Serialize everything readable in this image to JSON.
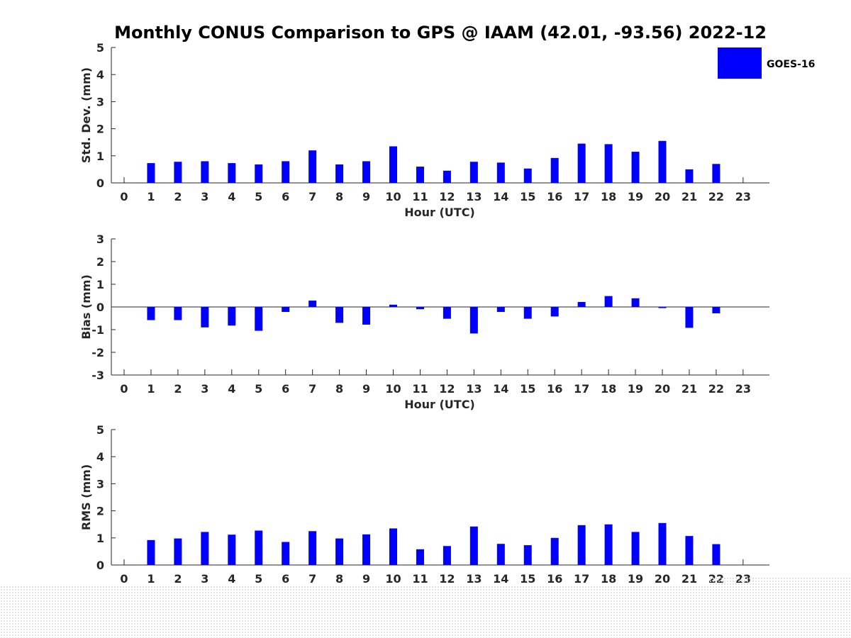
{
  "title": "Monthly CONUS Comparison to GPS @ IAAM (42.01, -93.56) 2022-12",
  "legend": {
    "label": "GOES-16",
    "color": "#0000ff"
  },
  "bar_color": "#0000ff",
  "chart_data": [
    {
      "type": "bar",
      "id": "std",
      "ylabel": "Std. Dev. (mm)",
      "xlabel": "Hour (UTC)",
      "ylim": [
        0,
        5
      ],
      "yticks": [
        0,
        1,
        2,
        3,
        4,
        5
      ],
      "categories": [
        "0",
        "1",
        "2",
        "3",
        "4",
        "5",
        "6",
        "7",
        "8",
        "9",
        "10",
        "11",
        "12",
        "13",
        "14",
        "15",
        "16",
        "17",
        "18",
        "19",
        "20",
        "21",
        "22",
        "23"
      ],
      "series": [
        {
          "name": "GOES-16",
          "values": [
            null,
            0.73,
            0.78,
            0.8,
            0.73,
            0.68,
            0.8,
            1.2,
            0.68,
            0.8,
            1.35,
            0.6,
            0.45,
            0.78,
            0.75,
            0.53,
            0.92,
            1.45,
            1.43,
            1.15,
            1.55,
            0.5,
            0.7,
            null
          ]
        }
      ]
    },
    {
      "type": "bar",
      "id": "bias",
      "ylabel": "Bias (mm)",
      "xlabel": "Hour (UTC)",
      "ylim": [
        -3,
        3
      ],
      "yticks": [
        -3,
        -2,
        -1,
        0,
        1,
        2,
        3
      ],
      "categories": [
        "0",
        "1",
        "2",
        "3",
        "4",
        "5",
        "6",
        "7",
        "8",
        "9",
        "10",
        "11",
        "12",
        "13",
        "14",
        "15",
        "16",
        "17",
        "18",
        "19",
        "20",
        "21",
        "22",
        "23"
      ],
      "series": [
        {
          "name": "GOES-16",
          "values": [
            null,
            -0.58,
            -0.58,
            -0.9,
            -0.82,
            -1.05,
            -0.22,
            0.28,
            -0.7,
            -0.78,
            0.1,
            -0.1,
            -0.52,
            -1.17,
            -0.22,
            -0.52,
            -0.42,
            0.22,
            0.48,
            0.38,
            -0.05,
            -0.92,
            -0.28,
            null
          ]
        }
      ]
    },
    {
      "type": "bar",
      "id": "rms",
      "ylabel": "RMS (mm)",
      "xlabel": "",
      "ylim": [
        0,
        5
      ],
      "yticks": [
        0,
        1,
        2,
        3,
        4,
        5
      ],
      "categories": [
        "0",
        "1",
        "2",
        "3",
        "4",
        "5",
        "6",
        "7",
        "8",
        "9",
        "10",
        "11",
        "12",
        "13",
        "14",
        "15",
        "16",
        "17",
        "18",
        "19",
        "20",
        "21",
        "22",
        "23"
      ],
      "series": [
        {
          "name": "GOES-16",
          "values": [
            null,
            0.92,
            0.98,
            1.22,
            1.12,
            1.27,
            0.85,
            1.25,
            0.98,
            1.13,
            1.35,
            0.58,
            0.7,
            1.42,
            0.78,
            0.73,
            1.0,
            1.47,
            1.5,
            1.22,
            1.55,
            1.07,
            0.77,
            null
          ]
        }
      ]
    }
  ]
}
